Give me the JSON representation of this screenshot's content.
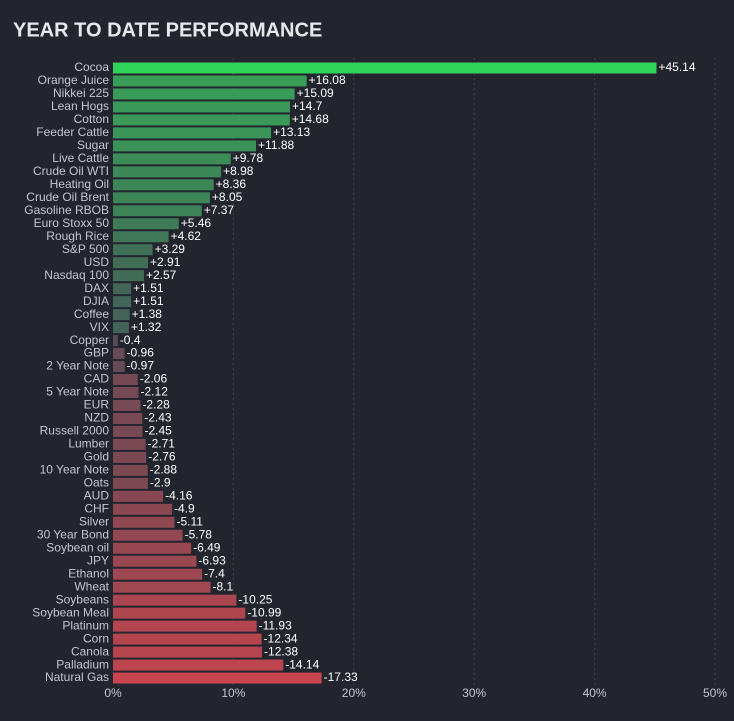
{
  "chart_data": {
    "type": "hbar",
    "title": "YEAR TO DATE PERFORMANCE",
    "categories": [
      "Cocoa",
      "Orange Juice",
      "Nikkei 225",
      "Lean Hogs",
      "Cotton",
      "Feeder Cattle",
      "Sugar",
      "Live Cattle",
      "Crude Oil WTI",
      "Heating Oil",
      "Crude Oil Brent",
      "Gasoline RBOB",
      "Euro Stoxx 50",
      "Rough Rice",
      "S&P 500",
      "USD",
      "Nasdaq 100",
      "DAX",
      "DJIA",
      "Coffee",
      "VIX",
      "Copper",
      "GBP",
      "2 Year Note",
      "CAD",
      "5 Year Note",
      "EUR",
      "NZD",
      "Russell 2000",
      "Lumber",
      "Gold",
      "10 Year Note",
      "Oats",
      "AUD",
      "CHF",
      "Silver",
      "30 Year Bond",
      "Soybean oil",
      "JPY",
      "Ethanol",
      "Wheat",
      "Soybeans",
      "Soybean Meal",
      "Platinum",
      "Corn",
      "Canola",
      "Palladium",
      "Natural Gas"
    ],
    "values": [
      45.14,
      16.08,
      15.09,
      14.7,
      14.68,
      13.13,
      11.88,
      9.78,
      8.98,
      8.36,
      8.05,
      7.37,
      5.46,
      4.62,
      3.29,
      2.91,
      2.57,
      1.51,
      1.51,
      1.38,
      1.32,
      -0.4,
      -0.96,
      -0.97,
      -2.06,
      -2.12,
      -2.28,
      -2.43,
      -2.45,
      -2.71,
      -2.76,
      -2.88,
      -2.9,
      -4.16,
      -4.9,
      -5.11,
      -5.78,
      -6.49,
      -6.93,
      -7.4,
      -8.1,
      -10.25,
      -10.99,
      -11.93,
      -12.34,
      -12.38,
      -14.14,
      -17.33
    ],
    "value_labels": [
      "+45.14",
      "+16.08",
      "+15.09",
      "+14.7",
      "+14.68",
      "+13.13",
      "+11.88",
      "+9.78",
      "+8.98",
      "+8.36",
      "+8.05",
      "+7.37",
      "+5.46",
      "+4.62",
      "+3.29",
      "+2.91",
      "+2.57",
      "+1.51",
      "+1.51",
      "+1.38",
      "+1.32",
      "-0.4",
      "-0.96",
      "-0.97",
      "-2.06",
      "-2.12",
      "-2.28",
      "-2.43",
      "-2.45",
      "-2.71",
      "-2.76",
      "-2.88",
      "-2.9",
      "-4.16",
      "-4.9",
      "-5.11",
      "-5.78",
      "-6.49",
      "-6.93",
      "-7.4",
      "-8.1",
      "-10.25",
      "-10.99",
      "-11.93",
      "-12.34",
      "-12.38",
      "-14.14",
      "-17.33"
    ],
    "colors": {
      "positive": "#2fd35a",
      "neutral": "#484c57",
      "negative": "#c8444e"
    },
    "xlim": [
      0,
      50
    ],
    "xticks": [
      {
        "value": 0,
        "label": "0%"
      },
      {
        "value": 10,
        "label": "10%"
      },
      {
        "value": 20,
        "label": "20%"
      },
      {
        "value": 30,
        "label": "30%"
      },
      {
        "value": 40,
        "label": "40%"
      },
      {
        "value": 50,
        "label": "50%"
      }
    ],
    "grid": true
  }
}
